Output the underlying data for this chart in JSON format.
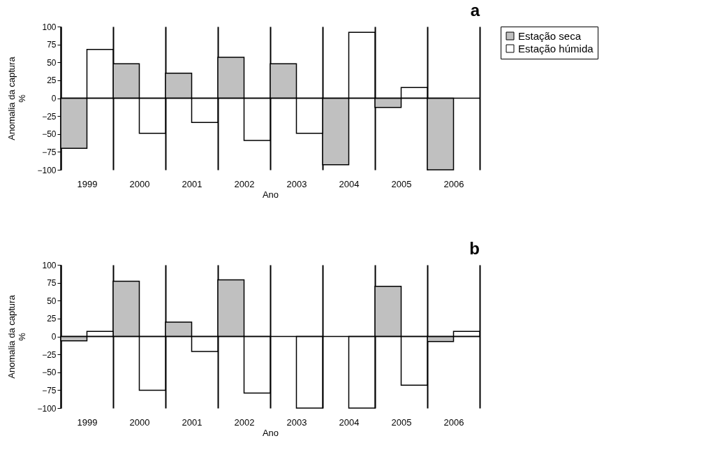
{
  "chart_data": [
    {
      "type": "bar",
      "title": "a",
      "xlabel": "Ano",
      "ylabel": "Anomalia da captura %",
      "categories": [
        "1999",
        "2000",
        "2001",
        "2002",
        "2003",
        "2004",
        "2005",
        "2006"
      ],
      "series": [
        {
          "name": "Estação seca",
          "color": "#c0c0c0",
          "values": [
            -70,
            48,
            35,
            57,
            48,
            -93,
            -13,
            -100
          ]
        },
        {
          "name": "Estação húmida",
          "color": "#ffffff",
          "values": [
            68,
            -49,
            -34,
            -59,
            -49,
            92,
            15,
            null
          ]
        }
      ],
      "ylim": [
        -100,
        100
      ],
      "yticks": [
        -100,
        -75,
        -50,
        -25,
        0,
        25,
        50,
        75,
        100
      ],
      "grid": "x",
      "legend": "top right",
      "ref_lines": [
        {
          "axis": "y",
          "value": 0
        }
      ]
    },
    {
      "type": "bar",
      "title": "b",
      "xlabel": "Ano",
      "ylabel": "Anomalia da captura %",
      "categories": [
        "1999",
        "2000",
        "2001",
        "2002",
        "2003",
        "2004",
        "2005",
        "2006"
      ],
      "series": [
        {
          "name": "Estação seca",
          "color": "#c0c0c0",
          "values": [
            -6,
            77,
            20,
            79,
            null,
            null,
            70,
            -7
          ]
        },
        {
          "name": "Estação húmida",
          "color": "#ffffff",
          "values": [
            7,
            -75,
            -21,
            -79,
            -100,
            -100,
            -68,
            7
          ]
        }
      ],
      "ylim": [
        -100,
        100
      ],
      "yticks": [
        -100,
        -75,
        -50,
        -25,
        0,
        25,
        50,
        75,
        100
      ],
      "grid": "x",
      "ref_lines": [
        {
          "axis": "y",
          "value": 0
        }
      ]
    }
  ]
}
